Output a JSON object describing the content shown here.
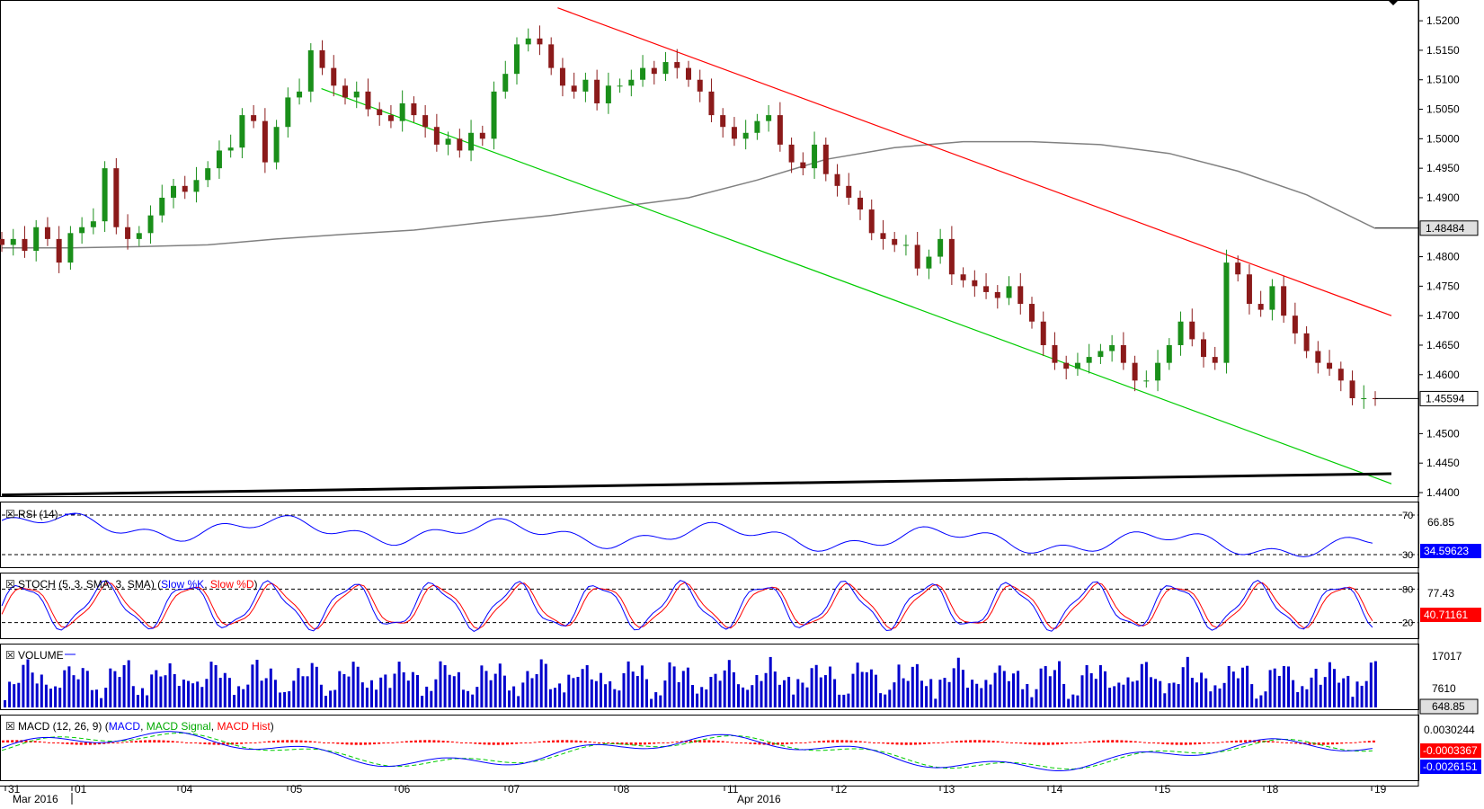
{
  "colors": {
    "bull": "#1a8f1a",
    "bear": "#8b1a1a",
    "sma": "#808080",
    "resistance": "#ff0000",
    "support": "#00cc00",
    "rsi": "#0000ff",
    "stoch_k": "#0000ff",
    "stoch_d": "#ff0000",
    "volume": "#0000cc",
    "macd": "#0000ff",
    "signal": "#00cc00",
    "hist": "#ff0000"
  },
  "chart_data": [
    {
      "type": "candlestick",
      "ylim": [
        1.44,
        1.522
      ],
      "y_ticks": [
        "1.5200",
        "1.5150",
        "1.5100",
        "1.5050",
        "1.5000",
        "1.4950",
        "1.4900",
        "1.4800",
        "1.4750",
        "1.4700",
        "1.4650",
        "1.4600",
        "1.4500",
        "1.4450",
        "1.4400"
      ],
      "last_price_label": "1.45594",
      "sma_label": "1.48484",
      "last_price": 1.45594,
      "sma_last": 1.48484,
      "x_labels": [
        "31",
        "01",
        "04",
        "05",
        "06",
        "07",
        "08",
        "11",
        "12",
        "13",
        "14",
        "15",
        "18",
        "19"
      ],
      "month_labels": [
        "Mar 2016",
        "Apr 2016"
      ],
      "sma_points": [
        1.4815,
        1.4815,
        1.4817,
        1.482,
        1.483,
        1.4838,
        1.4845,
        1.4858,
        1.487,
        1.4885,
        1.49,
        1.493,
        1.4965,
        1.4985,
        1.4995,
        1.4995,
        1.499,
        1.4975,
        1.4945,
        1.4905,
        1.4848
      ],
      "resistance_line": [
        [
          0.4,
          1.5222
        ],
        [
          1.0,
          1.47
        ]
      ],
      "support_line": [
        [
          0.23,
          1.5085
        ],
        [
          1.0,
          1.4415
        ]
      ],
      "long_trend_line": [
        [
          0.0,
          1.4396
        ],
        [
          1.0,
          1.4432
        ]
      ],
      "close_path": [
        1.482,
        1.483,
        1.481,
        1.485,
        1.483,
        1.479,
        1.484,
        1.485,
        1.486,
        1.495,
        1.485,
        1.483,
        1.484,
        1.487,
        1.49,
        1.492,
        1.491,
        1.493,
        1.495,
        1.498,
        1.4985,
        1.504,
        1.503,
        1.496,
        1.502,
        1.507,
        1.508,
        1.515,
        1.512,
        1.509,
        1.507,
        1.508,
        1.505,
        1.504,
        1.503,
        1.506,
        1.504,
        1.502,
        1.499,
        1.5,
        1.498,
        1.501,
        1.5,
        1.508,
        1.511,
        1.516,
        1.517,
        1.516,
        1.512,
        1.509,
        1.508,
        1.51,
        1.506,
        1.509,
        1.509,
        1.51,
        1.512,
        1.511,
        1.513,
        1.512,
        1.51,
        1.508,
        1.504,
        1.502,
        1.5,
        1.501,
        1.503,
        1.504,
        1.499,
        1.496,
        1.495,
        1.499,
        1.494,
        1.492,
        1.49,
        1.488,
        1.484,
        1.483,
        1.482,
        1.482,
        1.478,
        1.48,
        1.483,
        1.477,
        1.476,
        1.475,
        1.474,
        1.473,
        1.475,
        1.472,
        1.469,
        1.465,
        1.462,
        1.461,
        1.462,
        1.463,
        1.464,
        1.465,
        1.462,
        1.459,
        1.459,
        1.462,
        1.465,
        1.469,
        1.466,
        1.463,
        1.462,
        1.479,
        1.477,
        1.472,
        1.471,
        1.475,
        1.47,
        1.467,
        1.464,
        1.462,
        1.461,
        1.459,
        1.456,
        1.456,
        1.4559
      ],
      "rsi": {
        "label": "RSI (14)",
        "levels": [
          "70",
          "30"
        ],
        "right_labels": [
          "66.85",
          "34.59623"
        ],
        "y_range": [
          20,
          80
        ]
      },
      "stoch": {
        "label": "STOCH (5, 3, SMA, 3, SMA)",
        "k_label": "Slow %K",
        "d_label": "Slow %D",
        "levels": [
          "80",
          "20"
        ],
        "right_labels": [
          "77.43",
          "40.71161"
        ]
      },
      "volume": {
        "label": "VOLUME",
        "right_labels": [
          "17017",
          "7610",
          "648.85"
        ]
      },
      "macd": {
        "label": "MACD (12, 26, 9)",
        "macd_label": "MACD",
        "signal_label": "MACD Signal",
        "hist_label": "MACD Hist",
        "right_labels": [
          "0.0030244",
          "-0.0003367",
          "-0.0026151"
        ]
      }
    }
  ]
}
